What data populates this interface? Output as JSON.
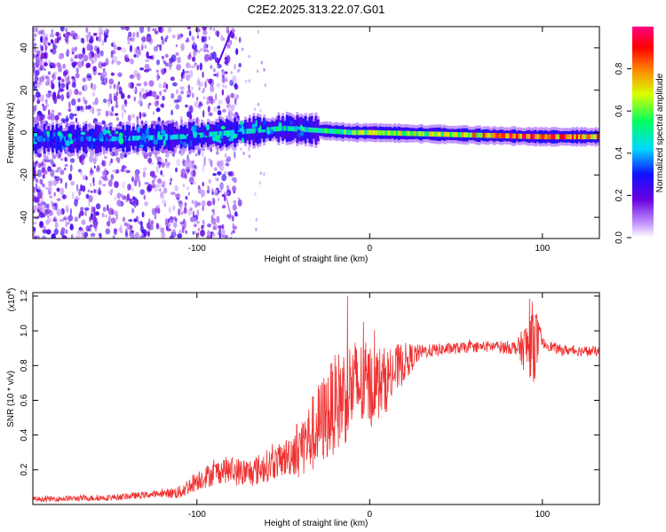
{
  "title": "C2E2.2025.313.22.07.G01",
  "chart_data": [
    {
      "type": "heatmap",
      "title": "C2E2.2025.313.22.07.G01",
      "xlabel": "Height of straight line (km)",
      "ylabel": "Frequency (Hz)",
      "xlim": [
        -195,
        133
      ],
      "ylim": [
        -50,
        50
      ],
      "x_ticks": [
        -100,
        0,
        100
      ],
      "x_tick_labels": [
        "-100",
        "0",
        "100"
      ],
      "y_ticks": [
        -40,
        -20,
        0,
        20,
        40
      ],
      "y_tick_labels": [
        "-40",
        "-20",
        "0",
        "20",
        "40"
      ],
      "colorbar": {
        "label": "Normalized spectral amplitude",
        "range": [
          0,
          1
        ],
        "ticks": [
          0.0,
          0.2,
          0.4,
          0.6,
          0.8
        ],
        "tick_labels": [
          "0.0",
          "0.2",
          "0.4",
          "0.6",
          "0.8"
        ],
        "colors": [
          "#ffffff",
          "#c8a0ff",
          "#6a00e0",
          "#1010ff",
          "#00d8ff",
          "#00ff60",
          "#d8ff00",
          "#ff8000",
          "#ff0000",
          "#ff0080"
        ]
      },
      "band": {
        "description": "main signal band",
        "center_frequency_points": [
          [
            -195,
            -3
          ],
          [
            -150,
            -3
          ],
          [
            -110,
            -2
          ],
          [
            -80,
            0
          ],
          [
            -50,
            2
          ],
          [
            -30,
            1
          ],
          [
            -10,
            0
          ],
          [
            0,
            0
          ],
          [
            50,
            -1
          ],
          [
            100,
            -2
          ],
          [
            133,
            -2
          ]
        ],
        "peak_amplitude_points": [
          [
            -195,
            0.35
          ],
          [
            -120,
            0.45
          ],
          [
            -60,
            0.5
          ],
          [
            -20,
            0.6
          ],
          [
            0,
            0.65
          ],
          [
            50,
            0.7
          ],
          [
            75,
            0.9
          ],
          [
            100,
            0.92
          ],
          [
            133,
            0.85
          ]
        ]
      }
    },
    {
      "type": "line",
      "xlabel": "Height of straight line (km)",
      "ylabel": "SNR (10 * v/v)",
      "y_multiplier": "(x10",
      "y_multiplier_exp": "4",
      "y_multiplier_close": ")",
      "xlim": [
        -195,
        133
      ],
      "ylim": [
        0,
        1.22
      ],
      "x_ticks": [
        -100,
        0,
        100
      ],
      "x_tick_labels": [
        "-100",
        "0",
        "100"
      ],
      "y_ticks": [
        0.2,
        0.4,
        0.6,
        0.8,
        1.0,
        1.2
      ],
      "y_tick_labels": [
        "0.2",
        "0.4",
        "0.6",
        "0.8",
        "1.0",
        "1.2"
      ],
      "series": [
        {
          "name": "SNR",
          "color": "#f03030",
          "envelope": [
            [
              -195,
              0.03
            ],
            [
              -150,
              0.04
            ],
            [
              -110,
              0.07
            ],
            [
              -100,
              0.14
            ],
            [
              -85,
              0.2
            ],
            [
              -70,
              0.18
            ],
            [
              -50,
              0.26
            ],
            [
              -35,
              0.38
            ],
            [
              -20,
              0.58
            ],
            [
              -10,
              0.68
            ],
            [
              0,
              0.68
            ],
            [
              10,
              0.72
            ],
            [
              20,
              0.82
            ],
            [
              30,
              0.88
            ],
            [
              50,
              0.9
            ],
            [
              70,
              0.91
            ],
            [
              90,
              0.9
            ],
            [
              95,
              0.95
            ],
            [
              110,
              0.89
            ],
            [
              133,
              0.88
            ]
          ],
          "noise_amplitude": [
            [
              -195,
              0.015
            ],
            [
              -120,
              0.02
            ],
            [
              -100,
              0.06
            ],
            [
              -80,
              0.08
            ],
            [
              -50,
              0.1
            ],
            [
              -30,
              0.25
            ],
            [
              -15,
              0.3
            ],
            [
              0,
              0.25
            ],
            [
              15,
              0.15
            ],
            [
              30,
              0.04
            ],
            [
              60,
              0.03
            ],
            [
              85,
              0.04
            ],
            [
              95,
              0.25
            ],
            [
              100,
              0.03
            ],
            [
              133,
              0.03
            ]
          ]
        }
      ]
    }
  ]
}
